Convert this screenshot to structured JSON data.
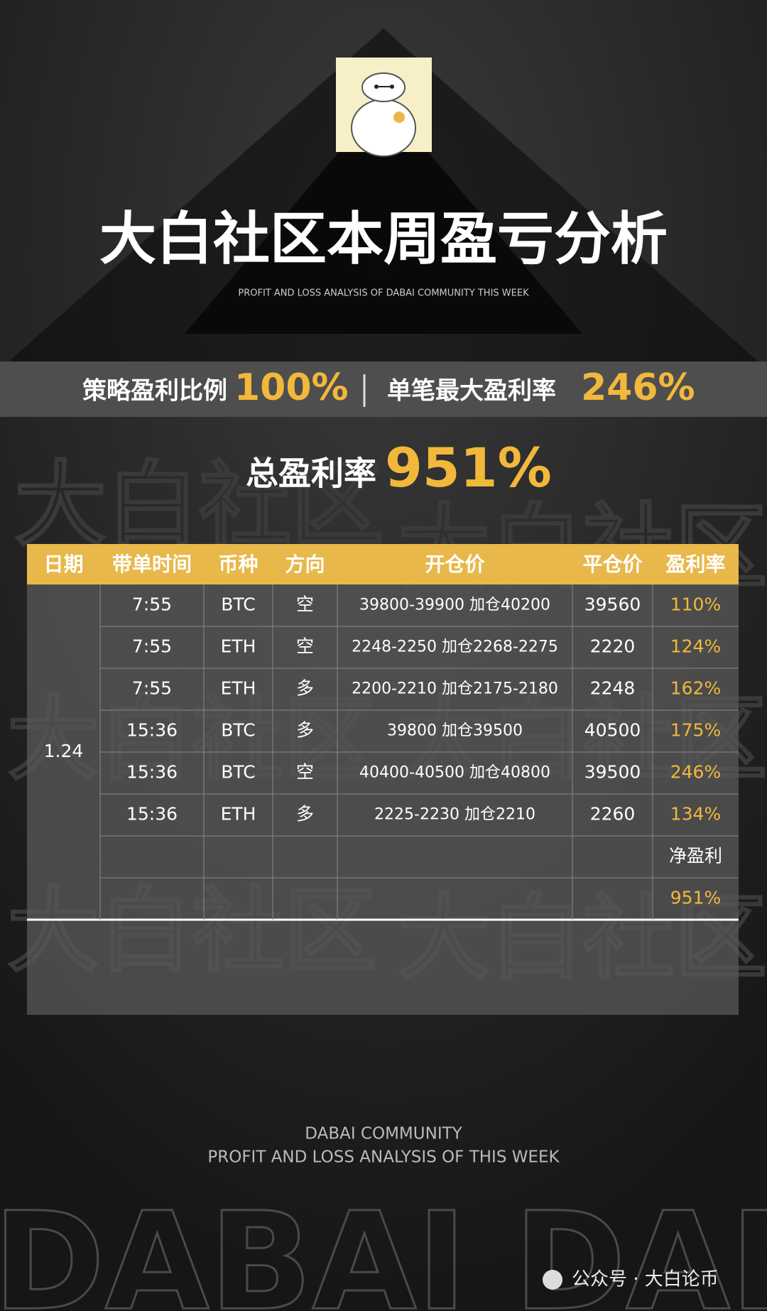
{
  "header": {
    "title": "大白社区本周盈亏分析",
    "subtitle": "PROFIT AND LOSS ANALYSIS OF DABAI COMMUNITY THIS WEEK"
  },
  "stats": {
    "ratio_label": "策略盈利比例",
    "ratio_value": "100%",
    "max_label": "单笔最大盈利率",
    "max_value": "246%",
    "total_label": "总盈利率",
    "total_value": "951%"
  },
  "table": {
    "headers": [
      "日期",
      "带单时间",
      "币种",
      "方向",
      "开仓价",
      "平仓价",
      "盈利率"
    ],
    "date": "1.24",
    "rows": [
      [
        "7:55",
        "BTC",
        "空",
        "39800-39900 加仓40200",
        "39560",
        "110%"
      ],
      [
        "7:55",
        "ETH",
        "空",
        "2248-2250 加仓2268-2275",
        "2220",
        "124%"
      ],
      [
        "7:55",
        "ETH",
        "多",
        "2200-2210 加仓2175-2180",
        "2248",
        "162%"
      ],
      [
        "15:36",
        "BTC",
        "多",
        "39800 加仓39500",
        "40500",
        "175%"
      ],
      [
        "15:36",
        "BTC",
        "空",
        "40400-40500 加仓40800",
        "39500",
        "246%"
      ],
      [
        "15:36",
        "ETH",
        "多",
        "2225-2230 加仓2210",
        "2260",
        "134%"
      ]
    ],
    "net_label": "净盈利",
    "net_value": "951%"
  },
  "watermark": "大白社区",
  "footer": {
    "line1": "DABAI COMMUNITY",
    "line2": "PROFIT AND LOSS ANALYSIS OF THIS WEEK",
    "big": "DABAI DAB",
    "account": "公众号 · 大白论币"
  }
}
